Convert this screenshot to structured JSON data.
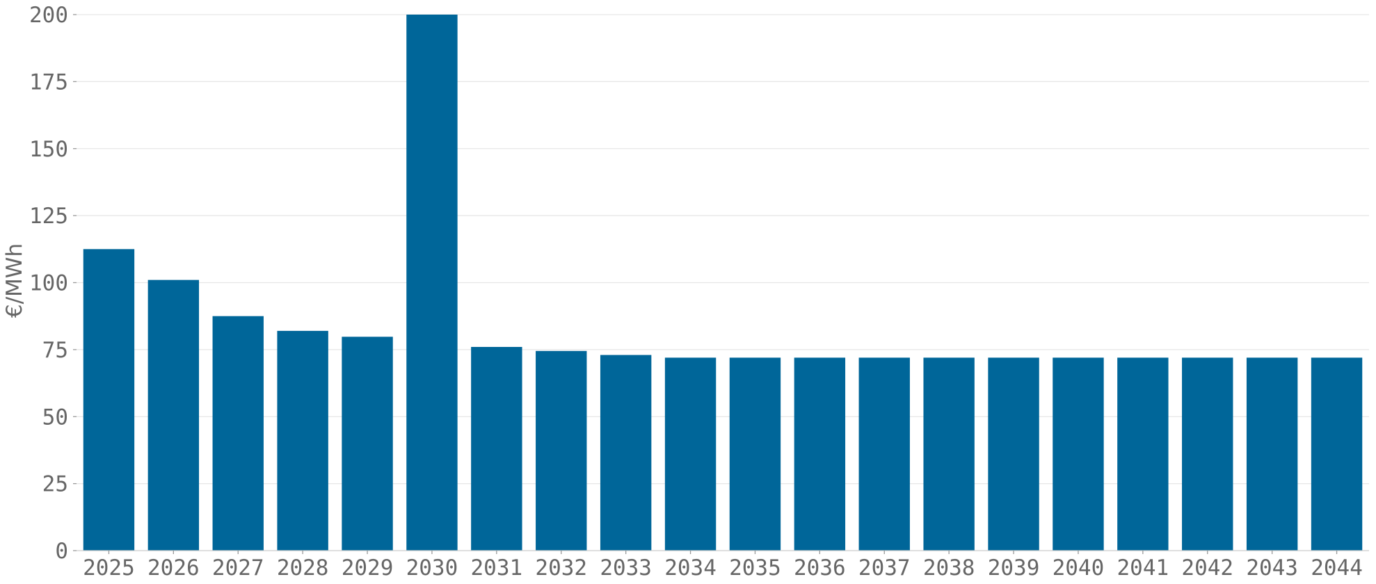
{
  "chart_data": {
    "type": "bar",
    "title": "",
    "xlabel": "",
    "ylabel": "€/MWh",
    "categories": [
      "2025",
      "2026",
      "2027",
      "2028",
      "2029",
      "2030",
      "2031",
      "2032",
      "2033",
      "2034",
      "2035",
      "2036",
      "2037",
      "2038",
      "2039",
      "2040",
      "2041",
      "2042",
      "2043",
      "2044"
    ],
    "values": [
      112.5,
      101,
      87.5,
      82,
      79.8,
      200,
      76,
      74.5,
      73,
      72,
      72,
      72,
      72,
      72,
      72,
      72,
      72,
      72,
      72,
      72
    ],
    "ylim": [
      0,
      200
    ],
    "yticks": [
      "0",
      "25",
      "50",
      "75",
      "100",
      "125",
      "150",
      "175",
      "200"
    ],
    "grid": "horizontal",
    "bar_color": "#006699",
    "legend": "none"
  }
}
